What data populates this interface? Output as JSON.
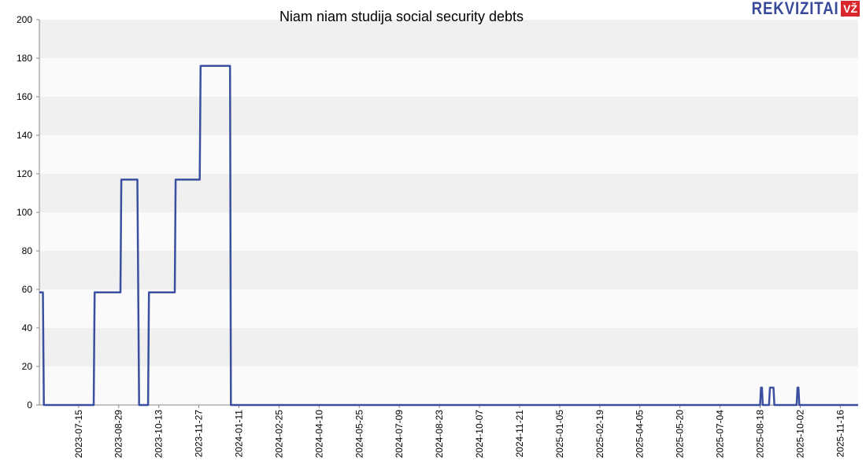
{
  "chart_data": {
    "type": "line",
    "title": "Niam niam studija social security debts",
    "ylim": [
      0,
      200
    ],
    "yticks": [
      0,
      20,
      40,
      60,
      80,
      100,
      120,
      140,
      160,
      180,
      200
    ],
    "xlim": [
      "2023-06-01",
      "2025-12-06"
    ],
    "xticks": [
      "2023-07-15",
      "2023-08-29",
      "2023-10-13",
      "2023-11-27",
      "2024-01-11",
      "2024-02-25",
      "2024-04-10",
      "2024-05-25",
      "2024-07-09",
      "2024-08-23",
      "2024-10-07",
      "2024-11-21",
      "2025-01-05",
      "2025-02-19",
      "2025-04-05",
      "2025-05-20",
      "2025-07-04",
      "2025-08-18",
      "2025-10-02",
      "2025-11-16"
    ],
    "grid": "horizontal bands",
    "series": [
      {
        "color": "#3a4f9f",
        "points": [
          [
            "2023-06-01",
            58.5
          ],
          [
            "2023-06-05",
            58.5
          ],
          [
            "2023-06-06",
            0
          ],
          [
            "2023-08-01",
            0
          ],
          [
            "2023-08-02",
            58.5
          ],
          [
            "2023-08-31",
            58.5
          ],
          [
            "2023-09-01",
            117
          ],
          [
            "2023-09-19",
            117
          ],
          [
            "2023-09-21",
            0
          ],
          [
            "2023-10-01",
            0
          ],
          [
            "2023-10-02",
            58.5
          ],
          [
            "2023-10-31",
            58.5
          ],
          [
            "2023-11-01",
            117
          ],
          [
            "2023-11-28",
            117
          ],
          [
            "2023-11-29",
            176
          ],
          [
            "2024-01-01",
            176
          ],
          [
            "2024-01-02",
            0
          ],
          [
            "2025-08-18",
            0
          ],
          [
            "2025-08-19",
            9
          ],
          [
            "2025-08-20",
            9
          ],
          [
            "2025-08-21",
            0
          ],
          [
            "2025-08-28",
            0
          ],
          [
            "2025-08-29",
            9
          ],
          [
            "2025-09-02",
            9
          ],
          [
            "2025-09-03",
            0
          ],
          [
            "2025-09-28",
            0
          ],
          [
            "2025-09-29",
            9
          ],
          [
            "2025-09-30",
            9
          ],
          [
            "2025-10-01",
            0
          ],
          [
            "2025-12-06",
            0
          ]
        ]
      }
    ]
  },
  "logo": {
    "word": "REKVIZITAI",
    "badge": "VŽ"
  }
}
